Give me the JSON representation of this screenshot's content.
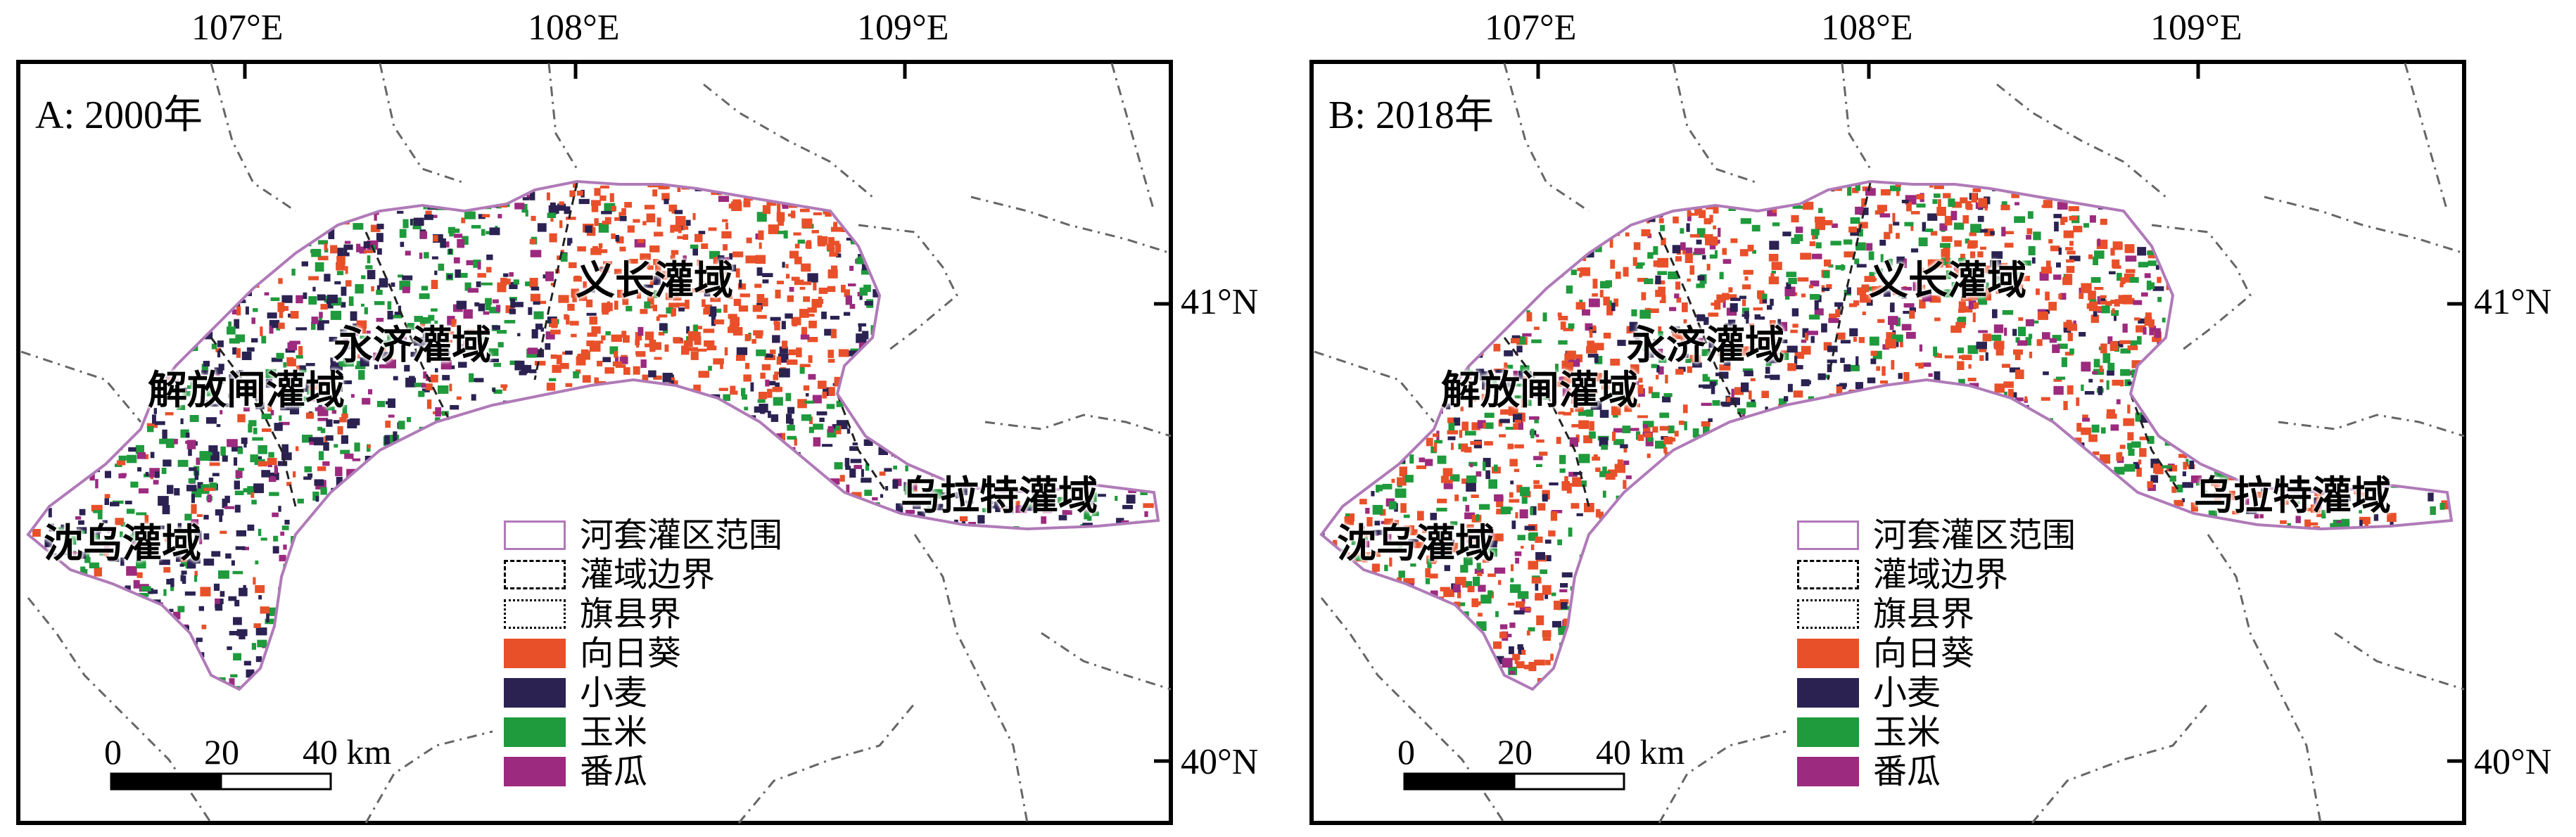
{
  "colors": {
    "sunflower": "#e8502a",
    "wheat": "#2b2252",
    "corn": "#1f9a3c",
    "tomato": "#9c2a7e",
    "boundary": "#b07ab8",
    "frame": "#000000"
  },
  "lon_ticks": [
    "107°E",
    "108°E",
    "109°E"
  ],
  "lat_ticks": [
    "41°N",
    "40°N"
  ],
  "panels": [
    {
      "title": "A: 2000年",
      "dominant": "wheat",
      "regions": [
        "义长灌域",
        "永济灌域",
        "解放闸灌域",
        "沈乌灌域",
        "乌拉特灌域"
      ]
    },
    {
      "title": "B: 2018年",
      "dominant": "sunflower",
      "regions": [
        "义长灌域",
        "永济灌域",
        "解放闸灌域",
        "沈乌灌域",
        "乌拉特灌域"
      ]
    }
  ],
  "legend": [
    {
      "label": "河套灌区范围",
      "kind": "outline"
    },
    {
      "label": "灌域边界",
      "kind": "dashed"
    },
    {
      "label": "旗县界",
      "kind": "dashdot"
    },
    {
      "label": "向日葵",
      "kind": "fill",
      "color": "#e8502a"
    },
    {
      "label": "小麦",
      "kind": "fill",
      "color": "#2b2252"
    },
    {
      "label": "玉米",
      "kind": "fill",
      "color": "#1f9a3c"
    },
    {
      "label": "番瓜",
      "kind": "fill",
      "color": "#9c2a7e"
    }
  ],
  "scalebar": {
    "labels": [
      "0",
      "20",
      "40 km"
    ]
  }
}
